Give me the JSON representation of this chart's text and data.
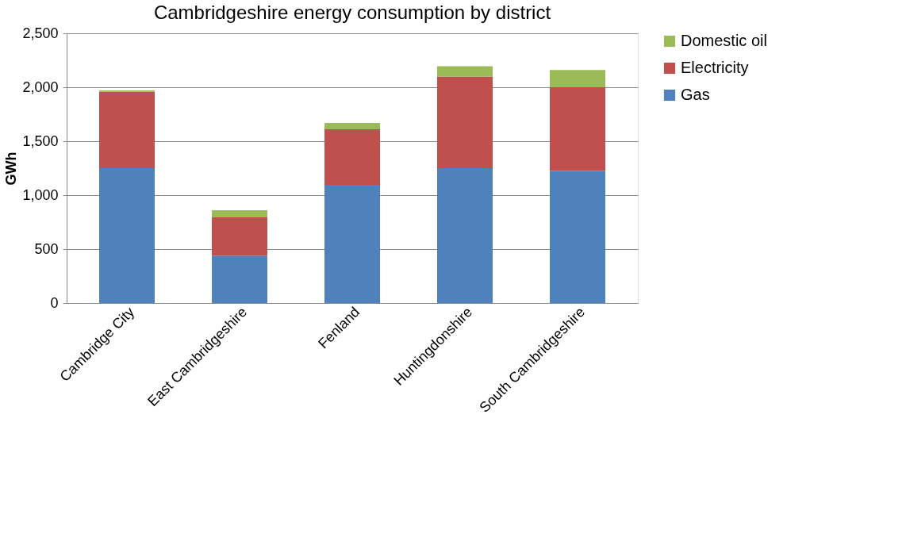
{
  "chart_data": {
    "type": "bar",
    "title": "Cambridgeshire energy consumption by district",
    "ylabel": "GWh",
    "categories": [
      "Cambridge City",
      "East Cambridgeshire",
      "Fenland",
      "Huntingdonshire",
      "South Cambridgeshire"
    ],
    "stacked": true,
    "series": [
      {
        "name": "Gas",
        "color": "#4f81bd",
        "values": [
          1250,
          440,
          1095,
          1250,
          1225
        ]
      },
      {
        "name": "Electricity",
        "color": "#c0504d",
        "values": [
          710,
          355,
          515,
          850,
          775
        ]
      },
      {
        "name": "Domestic oil",
        "color": "#9bbb59",
        "values": [
          10,
          65,
          60,
          95,
          160
        ]
      }
    ],
    "ylim": [
      0,
      2500
    ],
    "yticks": [
      0,
      500,
      {
        "value": 1000,
        "label": "1,000"
      },
      {
        "value": 1500,
        "label": "1,500"
      },
      {
        "value": 2000,
        "label": "2,000"
      },
      {
        "value": 2500,
        "label": "2,500"
      }
    ],
    "grid": "y",
    "legend": "right"
  }
}
